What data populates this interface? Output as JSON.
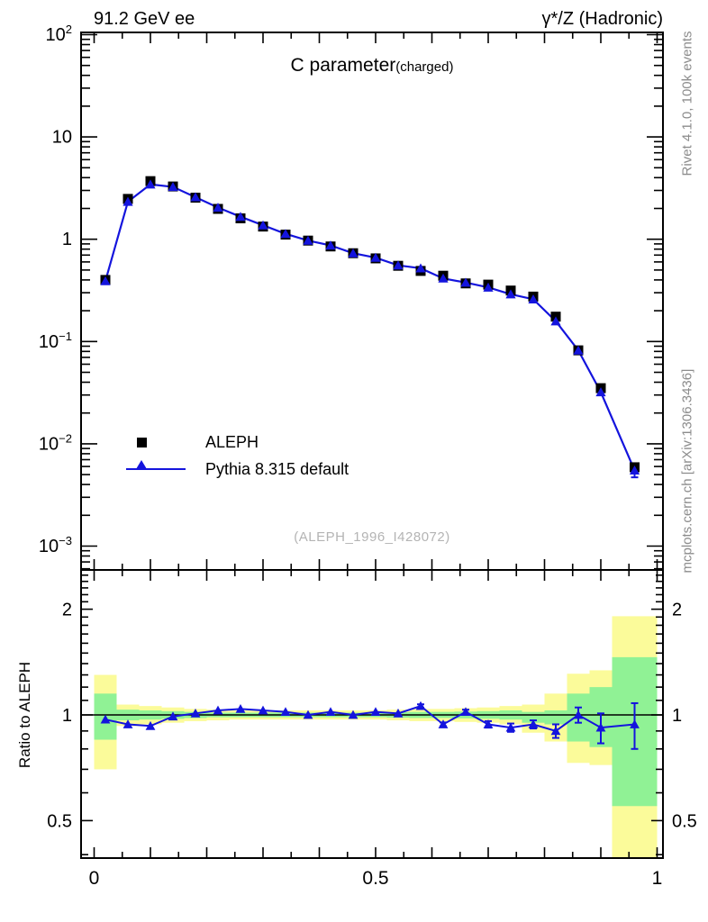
{
  "header": {
    "left": "91.2 GeV ee",
    "right": "γ*/Z (Hadronic)"
  },
  "side_notes": {
    "top_right": "Rivet 4.1.0,  100k events",
    "bottom_right": "mcplots.cern.ch [arXiv:1306.3436]"
  },
  "colors": {
    "pythia_blue": "#1414dd",
    "data_black": "#000000",
    "band_green": "#90f295",
    "band_yellow": "#fbfb9a",
    "gray_side_text": "#8c8c8c",
    "gray_watermark": "#b4b4b4"
  },
  "chart_data": {
    "type": "line",
    "title": "C parameter",
    "title_suffix": "(charged)",
    "reference_label": "(ALEPH_1996_I428072)",
    "yscale": "log",
    "xlim": [
      0,
      1
    ],
    "ylim_main": [
      0.0006,
      110
    ],
    "x_tick_labels": [
      {
        "value": 0,
        "label": "0"
      },
      {
        "value": 0.5,
        "label": "0.5"
      },
      {
        "value": 1,
        "label": "1"
      }
    ],
    "y_tick_labels_main": [
      {
        "value": 100,
        "base": "10",
        "exp": "2"
      },
      {
        "value": 10,
        "base": "10",
        "exp": ""
      },
      {
        "value": 1,
        "base": "1",
        "exp": ""
      },
      {
        "value": 0.1,
        "base": "10",
        "exp": "−1"
      },
      {
        "value": 0.01,
        "base": "10",
        "exp": "−2"
      },
      {
        "value": 0.001,
        "base": "10",
        "exp": "−3"
      }
    ],
    "bin_edges": [
      0,
      0.04,
      0.08,
      0.12,
      0.16,
      0.2,
      0.24,
      0.28,
      0.32,
      0.36,
      0.4,
      0.44,
      0.48,
      0.52,
      0.56,
      0.6,
      0.64,
      0.68,
      0.72,
      0.76,
      0.8,
      0.84,
      0.88,
      0.92,
      1.0
    ],
    "x": [
      0.02,
      0.06,
      0.1,
      0.14,
      0.18,
      0.22,
      0.26,
      0.3,
      0.34,
      0.38,
      0.42,
      0.46,
      0.5,
      0.54,
      0.58,
      0.62,
      0.66,
      0.7,
      0.74,
      0.78,
      0.82,
      0.86,
      0.9,
      0.96
    ],
    "series": [
      {
        "name": "ALEPH",
        "marker": "square",
        "color": "#000000",
        "values": [
          0.4,
          2.48,
          3.7,
          3.28,
          2.55,
          1.98,
          1.6,
          1.33,
          1.11,
          0.97,
          0.85,
          0.73,
          0.65,
          0.55,
          0.49,
          0.44,
          0.37,
          0.36,
          0.315,
          0.275,
          0.175,
          0.082,
          0.035,
          0.0059
        ]
      },
      {
        "name": "Pythia 8.315 default",
        "marker": "triangle",
        "color": "#1414dd",
        "values": [
          0.39,
          2.33,
          3.44,
          3.25,
          2.58,
          2.04,
          1.66,
          1.37,
          1.13,
          0.97,
          0.87,
          0.73,
          0.66,
          0.556,
          0.52,
          0.414,
          0.377,
          0.338,
          0.29,
          0.259,
          0.158,
          0.082,
          0.032,
          0.0055
        ],
        "yerr": [
          0,
          0,
          0,
          0,
          0,
          0,
          0,
          0,
          0,
          0,
          0,
          0,
          0,
          0,
          0,
          0,
          0,
          0,
          0,
          0,
          0,
          0,
          0,
          0.0008
        ]
      }
    ],
    "ratio_panel": {
      "ylabel": "Ratio to ALEPH",
      "yscale": "log",
      "ylim": [
        0.387,
        2.57
      ],
      "y_tick_labels": [
        {
          "value": 2,
          "label": "2"
        },
        {
          "value": 1,
          "label": "1"
        },
        {
          "value": 0.5,
          "label": "0.5"
        }
      ],
      "values": [
        0.97,
        0.94,
        0.93,
        0.99,
        1.01,
        1.03,
        1.04,
        1.03,
        1.02,
        1.0,
        1.02,
        1.0,
        1.02,
        1.01,
        1.06,
        0.94,
        1.02,
        0.94,
        0.92,
        0.94,
        0.9,
        1.0,
        0.92,
        0.94
      ],
      "yerr": [
        0,
        0,
        0,
        0,
        0,
        0,
        0,
        0,
        0,
        0,
        0,
        0,
        0,
        0,
        0.012,
        0.012,
        0.015,
        0.02,
        0.025,
        0.025,
        0.04,
        0.05,
        0.09,
        0.14
      ],
      "band_green": [
        [
          0.85,
          1.15
        ],
        [
          0.965,
          1.035
        ],
        [
          0.97,
          1.03
        ],
        [
          0.975,
          1.025
        ],
        [
          0.98,
          1.02
        ],
        [
          0.985,
          1.015
        ],
        [
          0.985,
          1.015
        ],
        [
          0.985,
          1.015
        ],
        [
          0.985,
          1.015
        ],
        [
          0.985,
          1.015
        ],
        [
          0.985,
          1.015
        ],
        [
          0.985,
          1.015
        ],
        [
          0.985,
          1.015
        ],
        [
          0.982,
          1.018
        ],
        [
          0.98,
          1.02
        ],
        [
          0.98,
          1.02
        ],
        [
          0.978,
          1.022
        ],
        [
          0.975,
          1.025
        ],
        [
          0.97,
          1.03
        ],
        [
          0.95,
          1.02
        ],
        [
          0.94,
          1.03
        ],
        [
          0.84,
          1.15
        ],
        [
          0.81,
          1.2
        ],
        [
          0.55,
          1.46
        ]
      ],
      "band_yellow": [
        [
          0.7,
          1.3
        ],
        [
          0.93,
          1.07
        ],
        [
          0.94,
          1.06
        ],
        [
          0.95,
          1.05
        ],
        [
          0.96,
          1.04
        ],
        [
          0.965,
          1.035
        ],
        [
          0.97,
          1.03
        ],
        [
          0.97,
          1.03
        ],
        [
          0.97,
          1.03
        ],
        [
          0.97,
          1.03
        ],
        [
          0.97,
          1.03
        ],
        [
          0.97,
          1.03
        ],
        [
          0.97,
          1.03
        ],
        [
          0.965,
          1.035
        ],
        [
          0.96,
          1.04
        ],
        [
          0.96,
          1.04
        ],
        [
          0.955,
          1.045
        ],
        [
          0.95,
          1.05
        ],
        [
          0.94,
          1.06
        ],
        [
          0.89,
          1.07
        ],
        [
          0.84,
          1.15
        ],
        [
          0.73,
          1.31
        ],
        [
          0.72,
          1.34
        ],
        [
          0.39,
          1.91
        ]
      ]
    }
  }
}
